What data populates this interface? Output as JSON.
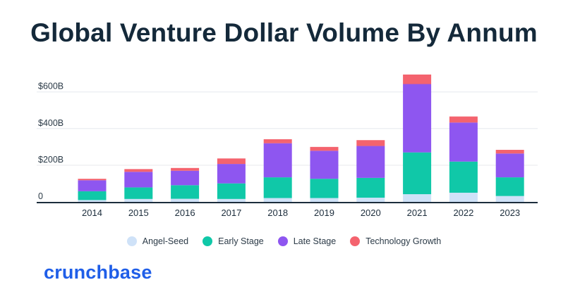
{
  "title": "Global Venture Dollar Volume By Annum",
  "brand": "crunchbase",
  "colors": {
    "angel_seed": "#cfe2f8",
    "early_stage": "#10c8a8",
    "late_stage": "#8e56f0",
    "technology_growth": "#f4636e",
    "axis": "#1c2d3c",
    "grid": "#e6e9ee",
    "brand": "#1f5ee8"
  },
  "legend": [
    {
      "label": "Angel-Seed",
      "color": "#cfe2f8"
    },
    {
      "label": "Early Stage",
      "color": "#10c8a8"
    },
    {
      "label": "Late Stage",
      "color": "#8e56f0"
    },
    {
      "label": "Technology Growth",
      "color": "#f4636e"
    }
  ],
  "chart_data": {
    "type": "bar",
    "stacked": true,
    "title": "Global Venture Dollar Volume By Annum",
    "xlabel": "",
    "ylabel": "",
    "categories": [
      "2014",
      "2015",
      "2016",
      "2017",
      "2018",
      "2019",
      "2020",
      "2021",
      "2022",
      "2023"
    ],
    "series": [
      {
        "name": "Angel-Seed",
        "values": [
          10,
          16,
          17,
          16,
          21,
          21,
          23,
          42,
          50,
          32
        ]
      },
      {
        "name": "Early Stage",
        "values": [
          48,
          63,
          74,
          85,
          113,
          105,
          108,
          228,
          170,
          102
        ]
      },
      {
        "name": "Late Stage",
        "values": [
          60,
          85,
          79,
          106,
          186,
          153,
          174,
          373,
          213,
          130
        ]
      },
      {
        "name": "Technology Growth",
        "values": [
          8,
          15,
          15,
          30,
          22,
          21,
          32,
          52,
          33,
          20
        ]
      }
    ],
    "ylim": [
      0,
      700
    ],
    "yticks": [
      0,
      200,
      400,
      600
    ],
    "ytick_labels": [
      "0",
      "$200B",
      "$400B",
      "$600B"
    ],
    "grid": true,
    "legend_position": "bottom-center"
  }
}
